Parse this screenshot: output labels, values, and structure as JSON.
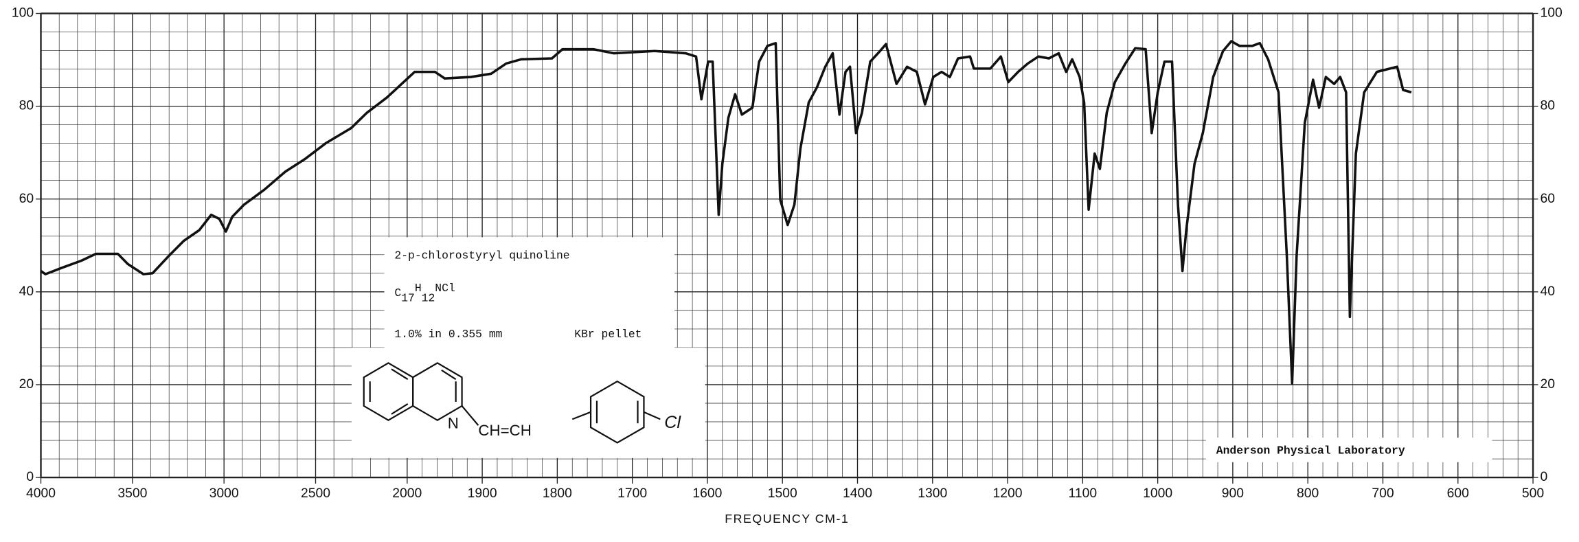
{
  "chart_data": {
    "type": "line",
    "x_label": "FREQUENCY   CM-1",
    "x": [
      4000,
      3975,
      3890,
      3780,
      3700,
      3580,
      3525,
      3440,
      3390,
      3300,
      3220,
      3135,
      3070,
      3025,
      2990,
      2955,
      2890,
      2780,
      2665,
      2555,
      2445,
      2305,
      2220,
      2110,
      1990,
      1963,
      1950,
      1915,
      1888,
      1868,
      1848,
      1807,
      1793,
      1752,
      1725,
      1670,
      1629,
      1615,
      1608,
      1599,
      1593,
      1585,
      1580,
      1572,
      1563,
      1554,
      1540,
      1531,
      1520,
      1509,
      1503,
      1493,
      1484,
      1476,
      1465,
      1454,
      1443,
      1433,
      1424,
      1416,
      1410,
      1402,
      1394,
      1383,
      1370,
      1362,
      1348,
      1334,
      1321,
      1310,
      1299,
      1288,
      1277,
      1266,
      1250,
      1245,
      1223,
      1209,
      1199,
      1186,
      1173,
      1159,
      1145,
      1132,
      1122,
      1114,
      1104,
      1098,
      1092,
      1084,
      1077,
      1068,
      1057,
      1043,
      1030,
      1016,
      1008,
      1000,
      991,
      981,
      973,
      967,
      962,
      951,
      940,
      926,
      913,
      902,
      891,
      874,
      864,
      853,
      839,
      828,
      821,
      815,
      804,
      793,
      785,
      776,
      765,
      757,
      749,
      744,
      736,
      725,
      708,
      681,
      673,
      662
    ],
    "values": [
      44.5,
      43.8,
      45.1,
      46.7,
      48.2,
      48.2,
      46,
      43.8,
      44,
      47.8,
      51,
      53.3,
      56.6,
      55.7,
      53,
      56.2,
      58.8,
      62,
      65.9,
      68.7,
      72,
      75.3,
      78.6,
      81.9,
      87.4,
      87.4,
      86,
      86.3,
      87,
      89.2,
      90.1,
      90.3,
      92.3,
      92.3,
      91.4,
      91.9,
      91.4,
      90.7,
      81.5,
      89.6,
      89.6,
      56.6,
      67.6,
      77.5,
      82.6,
      78.2,
      79.7,
      89.6,
      93,
      93.6,
      59.9,
      54.4,
      58.8,
      70.9,
      80.8,
      84.1,
      88.5,
      91.4,
      78.2,
      87.4,
      88.5,
      74.2,
      78.6,
      89.6,
      91.9,
      93.4,
      84.8,
      88.5,
      87.4,
      80.4,
      86.3,
      87.4,
      86.3,
      90.3,
      90.7,
      88.1,
      88.1,
      90.7,
      85.2,
      87.4,
      89.2,
      90.7,
      90.3,
      91.4,
      87.4,
      90.1,
      86.3,
      80.8,
      57.7,
      69.8,
      66.5,
      78.6,
      85.2,
      89.2,
      92.5,
      92.3,
      74.2,
      83,
      89.6,
      89.6,
      58.8,
      44.5,
      53.3,
      67.6,
      74.2,
      86.3,
      91.9,
      94,
      93,
      93,
      93.6,
      90.1,
      83,
      47.8,
      20.3,
      47.8,
      76.4,
      85.7,
      79.7,
      86.3,
      84.8,
      86.3,
      83,
      34.6,
      69.8,
      83,
      87.4,
      88.5,
      83.5,
      83
    ],
    "color": "#111111",
    "xlim": [
      4000,
      500
    ],
    "xticks": [
      4000,
      3500,
      3000,
      2500,
      2000,
      1900,
      1800,
      1700,
      1600,
      1500,
      1400,
      1300,
      1200,
      1100,
      1000,
      900,
      800,
      700,
      600,
      500
    ],
    "ylim": [
      0,
      100
    ],
    "yticks": [
      0,
      20,
      40,
      60,
      80,
      100
    ],
    "y2lim": [
      0,
      100
    ],
    "y2ticks": [
      0,
      20,
      40,
      60,
      80,
      100
    ],
    "grid": true,
    "annotations": {
      "compound": "2-p-chlorostyryl quinoline",
      "formula": [
        "C",
        "17",
        "H",
        "12",
        "NCl"
      ],
      "sample": "1.0% in 0.355 mm",
      "method": "KBr pellet",
      "structure_labels": [
        "N",
        "CH=CH",
        "Cl"
      ],
      "lab": "Anderson Physical Laboratory"
    }
  }
}
